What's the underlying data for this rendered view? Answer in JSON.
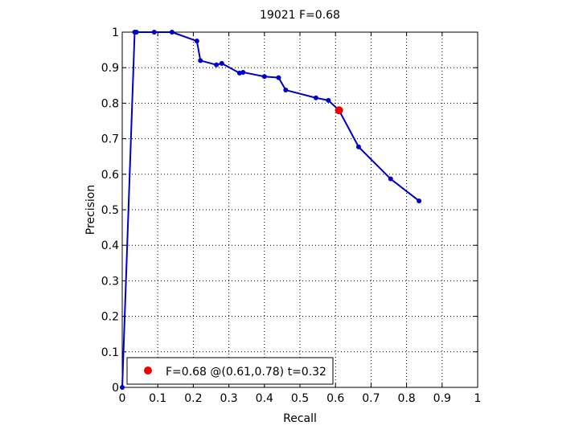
{
  "chart_data": {
    "type": "line",
    "title": "19021 F=0.68",
    "xlabel": "Recall",
    "ylabel": "Precision",
    "xlim": [
      0,
      1
    ],
    "ylim": [
      0,
      1
    ],
    "grid": true,
    "x_ticks": [
      "0",
      "0.1",
      "0.2",
      "0.3",
      "0.4",
      "0.5",
      "0.6",
      "0.7",
      "0.8",
      "0.9",
      "1"
    ],
    "y_ticks": [
      "0",
      "0.1",
      "0.2",
      "0.3",
      "0.4",
      "0.5",
      "0.6",
      "0.7",
      "0.8",
      "0.9",
      "1"
    ],
    "series": [
      {
        "color": "#0000cc",
        "points": [
          [
            0.0,
            0.0
          ],
          [
            0.035,
            1.0
          ],
          [
            0.04,
            1.0
          ],
          [
            0.09,
            1.0
          ],
          [
            0.14,
            1.0
          ],
          [
            0.21,
            0.975
          ],
          [
            0.22,
            0.92
          ],
          [
            0.265,
            0.908
          ],
          [
            0.28,
            0.912
          ],
          [
            0.33,
            0.885
          ],
          [
            0.34,
            0.887
          ],
          [
            0.4,
            0.875
          ],
          [
            0.44,
            0.872
          ],
          [
            0.46,
            0.837
          ],
          [
            0.545,
            0.815
          ],
          [
            0.58,
            0.808
          ],
          [
            0.61,
            0.78
          ],
          [
            0.665,
            0.677
          ],
          [
            0.755,
            0.587
          ],
          [
            0.835,
            0.525
          ]
        ]
      }
    ],
    "highlight": {
      "x": 0.61,
      "y": 0.78,
      "color": "#ee0000"
    },
    "legend": {
      "placement": "bottom-left",
      "label": "F=0.68 @(0.61,0.78) t=0.32"
    }
  }
}
